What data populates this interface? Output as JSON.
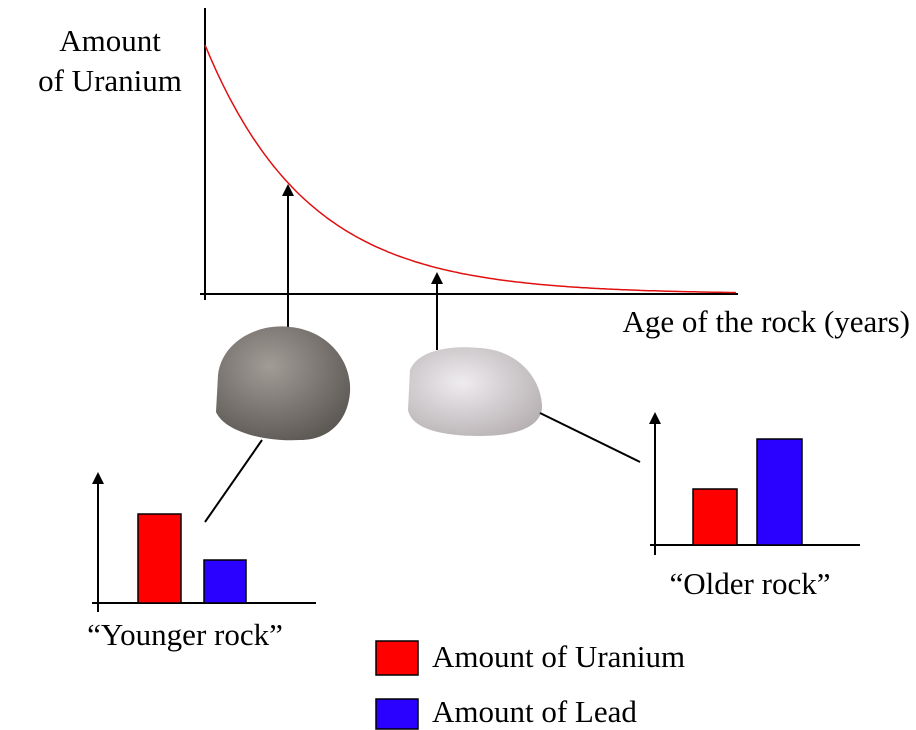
{
  "graph": {
    "y_axis_label": [
      "Amount",
      "of Uranium"
    ],
    "x_axis_label": "Age of the rock (years)"
  },
  "younger_rock": {
    "label": "“Younger rock”"
  },
  "older_rock": {
    "label": "“Older rock”"
  },
  "legend": [
    "Amount of Uranium",
    "Amount of Lead"
  ]
}
